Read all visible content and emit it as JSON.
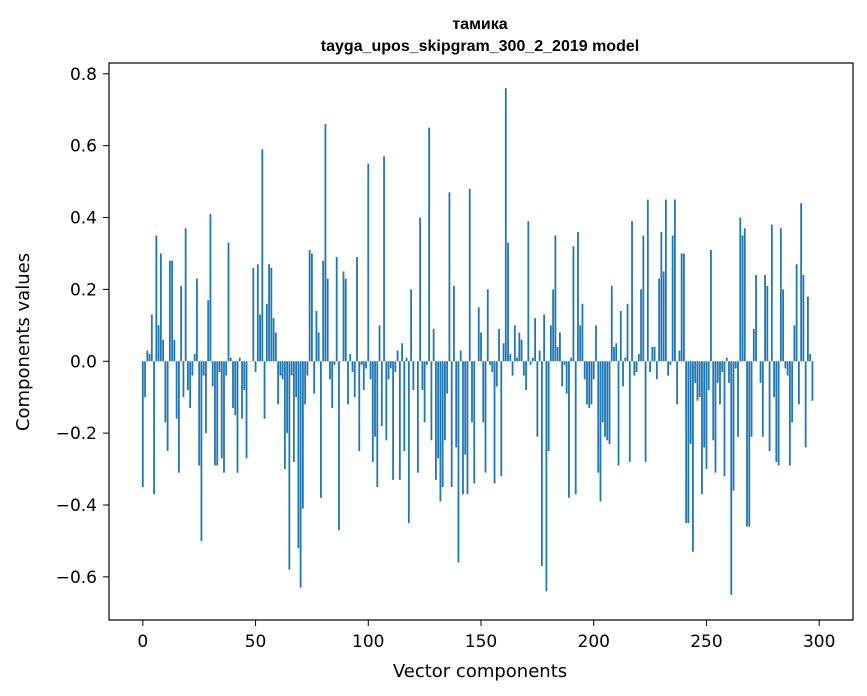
{
  "chart_data": {
    "type": "bar",
    "title_line1": "тамика",
    "title_line2": "tayga_upos_skipgram_300_2_2019 model",
    "xlabel": "Vector components",
    "ylabel": "Components values",
    "xlim": [
      -15,
      315
    ],
    "ylim": [
      -0.72,
      0.83
    ],
    "xticks": [
      0,
      50,
      100,
      150,
      200,
      250,
      300
    ],
    "xtick_labels": [
      "0",
      "50",
      "100",
      "150",
      "200",
      "250",
      "300"
    ],
    "yticks": [
      -0.6,
      -0.4,
      -0.2,
      0.0,
      0.2,
      0.4,
      0.6,
      0.8
    ],
    "ytick_labels": [
      "−0.6",
      "−0.4",
      "−0.2",
      "0.0",
      "0.2",
      "0.4",
      "0.6",
      "0.8"
    ],
    "bar_color": "#1f77b4",
    "values": [
      -0.35,
      -0.1,
      0.03,
      0.02,
      0.13,
      -0.37,
      0.35,
      0.1,
      0.3,
      0.06,
      -0.17,
      -0.25,
      0.28,
      0.28,
      0.06,
      -0.16,
      -0.31,
      0.21,
      -0.1,
      0.37,
      -0.08,
      -0.13,
      -0.04,
      0.02,
      0.23,
      -0.29,
      -0.5,
      -0.04,
      -0.2,
      0.17,
      0.41,
      -0.07,
      -0.29,
      -0.29,
      -0.03,
      -0.27,
      -0.31,
      -0.04,
      0.33,
      0.01,
      -0.13,
      -0.15,
      -0.31,
      0.01,
      -0.16,
      -0.08,
      -0.27,
      0.0,
      0.0,
      0.26,
      -0.03,
      0.27,
      0.13,
      0.59,
      -0.16,
      0.16,
      0.27,
      0.26,
      0.12,
      0.08,
      -0.12,
      -0.04,
      -0.05,
      -0.3,
      -0.2,
      -0.58,
      -0.04,
      -0.28,
      -0.1,
      -0.52,
      -0.63,
      -0.41,
      -0.12,
      -0.04,
      0.31,
      0.3,
      -0.09,
      0.14,
      0.08,
      -0.38,
      0.28,
      0.66,
      0.23,
      -0.05,
      -0.13,
      -0.01,
      0.29,
      -0.47,
      0.0,
      0.25,
      0.23,
      -0.12,
      0.02,
      -0.03,
      -0.1,
      0.29,
      -0.25,
      -0.01,
      -0.08,
      -0.02,
      0.55,
      -0.05,
      -0.28,
      -0.21,
      -0.35,
      0.1,
      -0.18,
      0.57,
      -0.22,
      -0.05,
      -0.02,
      -0.33,
      -0.03,
      0.03,
      -0.33,
      0.05,
      -0.25,
      0.01,
      -0.45,
      0.2,
      -0.08,
      0.0,
      -0.31,
      0.4,
      -0.08,
      -0.17,
      -0.01,
      0.65,
      -0.22,
      0.09,
      -0.33,
      -0.27,
      -0.39,
      -0.35,
      -0.22,
      -0.09,
      0.47,
      -0.35,
      0.21,
      -0.24,
      -0.56,
      0.03,
      -0.37,
      -0.26,
      -0.37,
      0.48,
      -0.17,
      -0.34,
      0.0,
      0.15,
      0.08,
      -0.17,
      -0.31,
      0.2,
      -0.01,
      -0.03,
      -0.34,
      -0.07,
      0.09,
      -0.32,
      0.05,
      0.76,
      0.33,
      0.02,
      -0.04,
      0.1,
      0.01,
      0.08,
      0.06,
      -0.04,
      -0.08,
      0.39,
      -0.01,
      0.01,
      0.12,
      -0.21,
      0.03,
      -0.57,
      0.13,
      -0.64,
      -0.25,
      0.1,
      0.2,
      0.35,
      0.04,
      0.08,
      -0.07,
      -0.01,
      -0.09,
      -0.38,
      0.01,
      0.32,
      -0.37,
      0.36,
      0.1,
      0.16,
      -0.05,
      -0.12,
      -0.13,
      -0.12,
      -0.05,
      0.1,
      -0.31,
      -0.39,
      -0.17,
      -0.21,
      -0.22,
      -0.23,
      0.21,
      0.04,
      0.05,
      -0.29,
      0.14,
      -0.07,
      0.01,
      0.16,
      -0.28,
      0.39,
      -0.04,
      -0.03,
      0.02,
      0.2,
      0.35,
      -0.28,
      0.45,
      -0.03,
      0.04,
      0.04,
      -0.05,
      0.23,
      0.36,
      0.25,
      0.45,
      -0.04,
      -0.01,
      0.35,
      0.45,
      -0.12,
      0.03,
      0.3,
      0.3,
      -0.45,
      -0.45,
      -0.23,
      -0.53,
      -0.06,
      -0.11,
      -0.1,
      -0.37,
      -0.24,
      -0.3,
      -0.08,
      0.31,
      -0.22,
      -0.31,
      -0.06,
      -0.12,
      -0.03,
      -0.32,
      0.01,
      -0.06,
      -0.65,
      -0.36,
      -0.02,
      -0.21,
      0.4,
      0.35,
      0.37,
      -0.46,
      -0.46,
      -0.21,
      0.09,
      0.24,
      0.0,
      -0.06,
      -0.21,
      0.24,
      0.21,
      -0.25,
      0.38,
      -0.1,
      -0.28,
      -0.29,
      0.37,
      0.2,
      -0.02,
      -0.04,
      -0.29,
      -0.17,
      0.1,
      0.27,
      -0.12,
      0.44,
      0.24,
      -0.24,
      0.18,
      0.02,
      -0.11
    ]
  }
}
